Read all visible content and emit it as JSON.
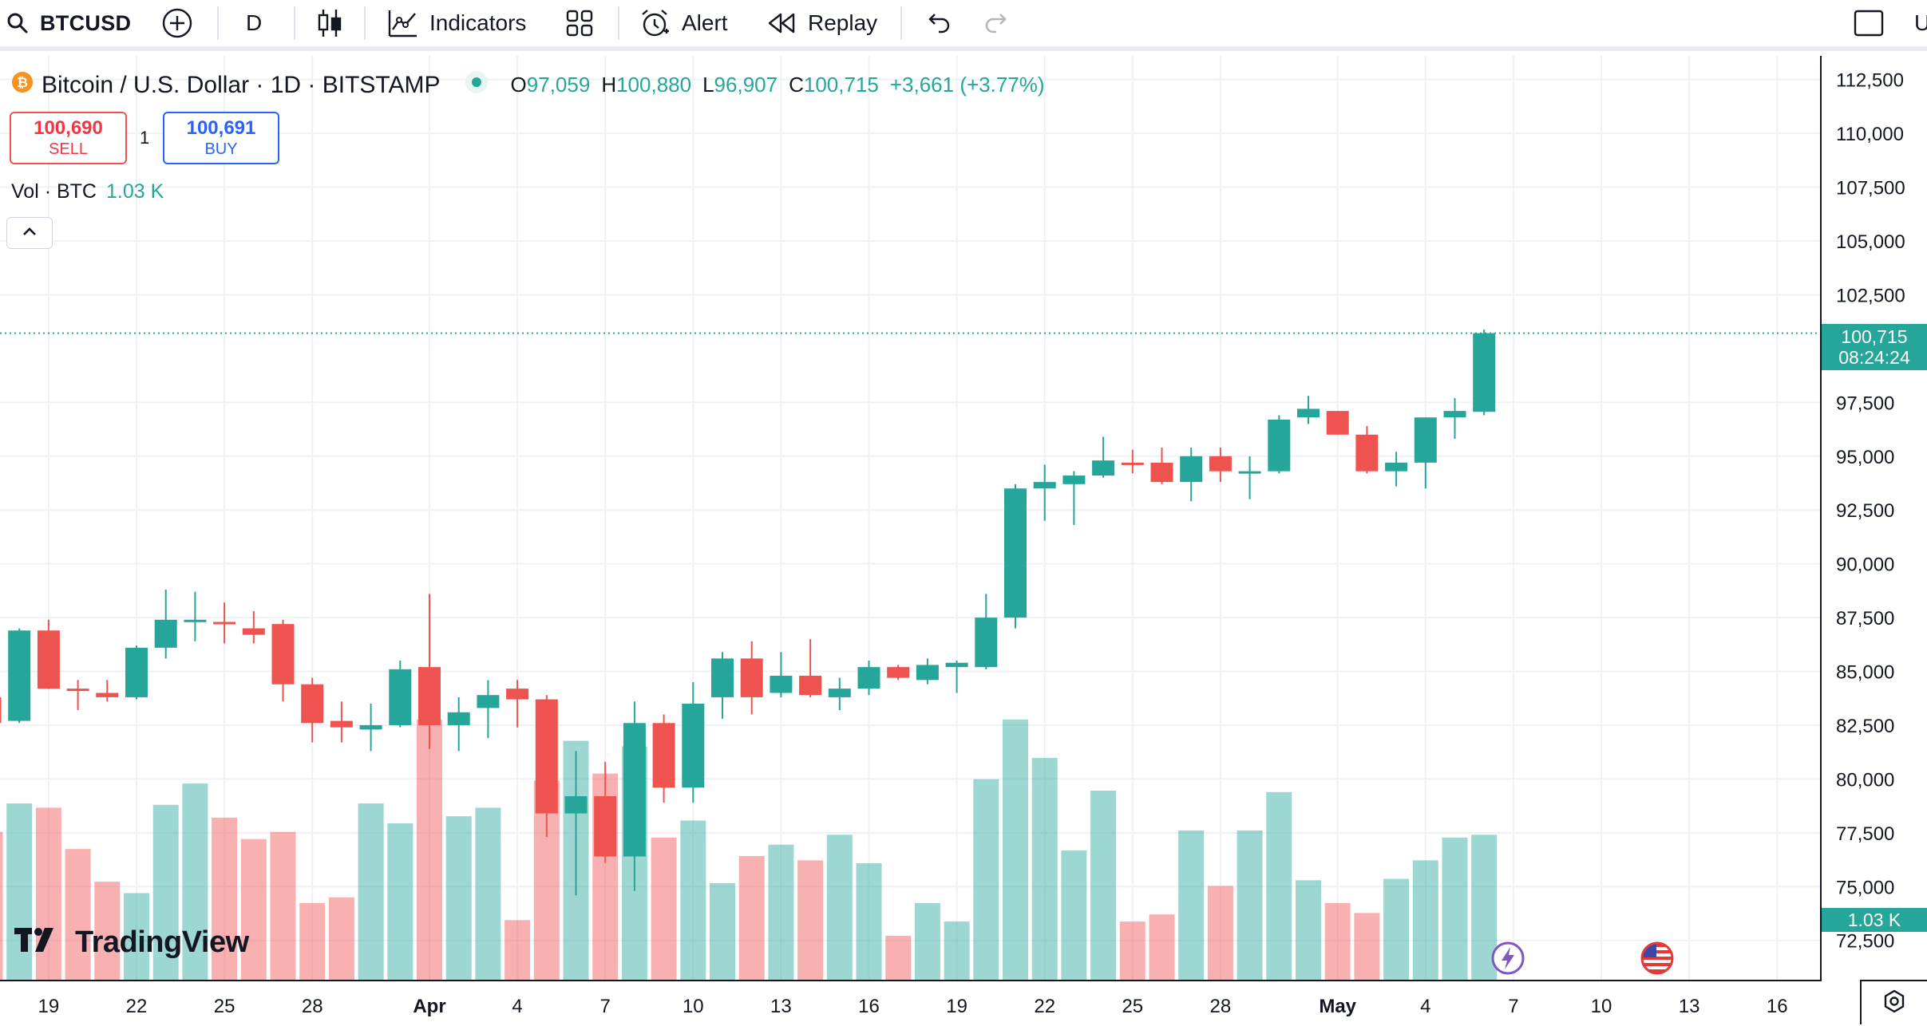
{
  "toolbar": {
    "symbol": "BTCUSD",
    "interval": "D",
    "indicators_label": "Indicators",
    "alert_label": "Alert",
    "replay_label": "Replay",
    "right_cut_label": "U"
  },
  "legend": {
    "title": "Bitcoin / U.S. Dollar · 1D · BITSTAMP",
    "open_label": "O",
    "open": "97,059",
    "high_label": "H",
    "high": "100,880",
    "low_label": "L",
    "low": "96,907",
    "close_label": "C",
    "close": "100,715",
    "change": "+3,661 (+3.77%)"
  },
  "trade": {
    "sell_price": "100,690",
    "sell_label": "SELL",
    "spread": "1",
    "buy_price": "100,691",
    "buy_label": "BUY"
  },
  "volume_legend": {
    "label": "Vol · BTC",
    "value": "1.03 K"
  },
  "price_scale": {
    "labels": [
      "112,500",
      "110,000",
      "107,500",
      "105,000",
      "102,500",
      "97,500",
      "95,000",
      "92,500",
      "90,000",
      "87,500",
      "85,000",
      "82,500",
      "80,000",
      "77,500",
      "75,000",
      "72,500"
    ],
    "last_price": "100,715",
    "countdown": "08:24:24",
    "volume_badge": "1.03 K"
  },
  "time_scale": {
    "labels": [
      "19",
      "22",
      "25",
      "28",
      "Apr",
      "4",
      "7",
      "10",
      "13",
      "16",
      "19",
      "22",
      "25",
      "28",
      "May",
      "4",
      "7",
      "10",
      "13",
      "16"
    ]
  },
  "brand": {
    "name": "TradingView"
  },
  "colors": {
    "up": "#26a69a",
    "down": "#ef5350",
    "grid": "#eef1f5",
    "price_line": "#26a69a"
  },
  "chart_data": {
    "type": "candlestick",
    "title": "Bitcoin / U.S. Dollar · 1D · BITSTAMP",
    "ylim": [
      70600,
      113600
    ],
    "y_ticks": [
      72500,
      75000,
      77500,
      80000,
      82500,
      85000,
      87500,
      90000,
      92500,
      95000,
      97500,
      102500,
      105000,
      107500,
      110000,
      112500
    ],
    "volume_max": 1.85,
    "candles": [
      {
        "date": "Mar 17",
        "open": 83800,
        "high": 84100,
        "low": 82600,
        "close": 82600,
        "volume": 1.05
      },
      {
        "date": "Mar 18",
        "open": 82700,
        "high": 87000,
        "low": 82600,
        "close": 86900,
        "volume": 1.25
      },
      {
        "date": "Mar 19",
        "open": 86900,
        "high": 87400,
        "low": 84200,
        "close": 84200,
        "volume": 1.22
      },
      {
        "date": "Mar 20",
        "open": 84200,
        "high": 84600,
        "low": 83200,
        "close": 84100,
        "volume": 0.93
      },
      {
        "date": "Mar 21",
        "open": 84000,
        "high": 84600,
        "low": 83600,
        "close": 83800,
        "volume": 0.7
      },
      {
        "date": "Mar 22",
        "open": 83800,
        "high": 86200,
        "low": 83700,
        "close": 86100,
        "volume": 0.62
      },
      {
        "date": "Mar 23",
        "open": 86100,
        "high": 88800,
        "low": 85600,
        "close": 87400,
        "volume": 1.24
      },
      {
        "date": "Mar 24",
        "open": 87400,
        "high": 88700,
        "low": 86400,
        "close": 87400,
        "volume": 1.39
      },
      {
        "date": "Mar 25",
        "open": 87300,
        "high": 88200,
        "low": 86300,
        "close": 87200,
        "volume": 1.15
      },
      {
        "date": "Mar 26",
        "open": 87000,
        "high": 87800,
        "low": 86300,
        "close": 86700,
        "volume": 1.0
      },
      {
        "date": "Mar 27",
        "open": 87200,
        "high": 87400,
        "low": 83600,
        "close": 84400,
        "volume": 1.05
      },
      {
        "date": "Mar 28",
        "open": 84400,
        "high": 84700,
        "low": 81700,
        "close": 82600,
        "volume": 0.55
      },
      {
        "date": "Mar 29",
        "open": 82700,
        "high": 83600,
        "low": 81700,
        "close": 82400,
        "volume": 0.59
      },
      {
        "date": "Mar 30",
        "open": 82300,
        "high": 83500,
        "low": 81300,
        "close": 82500,
        "volume": 1.25
      },
      {
        "date": "Mar 31",
        "open": 82500,
        "high": 85500,
        "low": 82400,
        "close": 85100,
        "volume": 1.11
      },
      {
        "date": "Apr 1",
        "open": 85200,
        "high": 88600,
        "low": 81400,
        "close": 82500,
        "volume": 1.84
      },
      {
        "date": "Apr 2",
        "open": 82500,
        "high": 83800,
        "low": 81300,
        "close": 83100,
        "volume": 1.16
      },
      {
        "date": "Apr 3",
        "open": 83300,
        "high": 84600,
        "low": 81900,
        "close": 83900,
        "volume": 1.22
      },
      {
        "date": "Apr 4",
        "open": 84200,
        "high": 84600,
        "low": 82400,
        "close": 83700,
        "volume": 0.43
      },
      {
        "date": "Apr 5",
        "open": 83700,
        "high": 83900,
        "low": 77300,
        "close": 78400,
        "volume": 1.41
      },
      {
        "date": "Apr 6",
        "open": 78400,
        "high": 81300,
        "low": 74600,
        "close": 79200,
        "volume": 1.69
      },
      {
        "date": "Apr 7",
        "open": 79200,
        "high": 80800,
        "low": 76100,
        "close": 76400,
        "volume": 1.46
      },
      {
        "date": "Apr 8",
        "open": 76400,
        "high": 83600,
        "low": 74800,
        "close": 82600,
        "volume": 1.65
      },
      {
        "date": "Apr 9",
        "open": 82600,
        "high": 83000,
        "low": 78900,
        "close": 79600,
        "volume": 1.01
      },
      {
        "date": "Apr 10",
        "open": 79600,
        "high": 84500,
        "low": 78900,
        "close": 83500,
        "volume": 1.13
      },
      {
        "date": "Apr 11",
        "open": 83800,
        "high": 85900,
        "low": 82800,
        "close": 85600,
        "volume": 0.69
      },
      {
        "date": "Apr 12",
        "open": 85600,
        "high": 86400,
        "low": 83000,
        "close": 83800,
        "volume": 0.88
      },
      {
        "date": "Apr 13",
        "open": 84000,
        "high": 85900,
        "low": 83800,
        "close": 84800,
        "volume": 0.96
      },
      {
        "date": "Apr 14",
        "open": 84800,
        "high": 86500,
        "low": 83800,
        "close": 83900,
        "volume": 0.85
      },
      {
        "date": "Apr 15",
        "open": 83800,
        "high": 84700,
        "low": 83200,
        "close": 84200,
        "volume": 1.03
      },
      {
        "date": "Apr 16",
        "open": 84200,
        "high": 85500,
        "low": 83900,
        "close": 85200,
        "volume": 0.83
      },
      {
        "date": "Apr 17",
        "open": 85200,
        "high": 85300,
        "low": 84600,
        "close": 84700,
        "volume": 0.32
      },
      {
        "date": "Apr 18",
        "open": 84600,
        "high": 85600,
        "low": 84400,
        "close": 85300,
        "volume": 0.55
      },
      {
        "date": "Apr 19",
        "open": 85200,
        "high": 85500,
        "low": 84000,
        "close": 85400,
        "volume": 0.42
      },
      {
        "date": "Apr 20",
        "open": 85200,
        "high": 88600,
        "low": 85100,
        "close": 87500,
        "volume": 1.42
      },
      {
        "date": "Apr 21",
        "open": 87500,
        "high": 93700,
        "low": 87000,
        "close": 93500,
        "volume": 1.84
      },
      {
        "date": "Apr 22",
        "open": 93500,
        "high": 94600,
        "low": 92000,
        "close": 93800,
        "volume": 1.57
      },
      {
        "date": "Apr 23",
        "open": 93700,
        "high": 94300,
        "low": 91800,
        "close": 94100,
        "volume": 0.92
      },
      {
        "date": "Apr 24",
        "open": 94100,
        "high": 95900,
        "low": 94000,
        "close": 94800,
        "volume": 1.34
      },
      {
        "date": "Apr 25",
        "open": 94700,
        "high": 95300,
        "low": 94200,
        "close": 94600,
        "volume": 0.42
      },
      {
        "date": "Apr 26",
        "open": 94700,
        "high": 95400,
        "low": 93700,
        "close": 93800,
        "volume": 0.47
      },
      {
        "date": "Apr 27",
        "open": 93800,
        "high": 95400,
        "low": 92900,
        "close": 95000,
        "volume": 1.06
      },
      {
        "date": "Apr 28",
        "open": 95000,
        "high": 95400,
        "low": 93800,
        "close": 94300,
        "volume": 0.67
      },
      {
        "date": "Apr 29",
        "open": 94300,
        "high": 95000,
        "low": 93000,
        "close": 94300,
        "volume": 1.06
      },
      {
        "date": "Apr 30",
        "open": 94300,
        "high": 96900,
        "low": 94200,
        "close": 96700,
        "volume": 1.33
      },
      {
        "date": "May 1",
        "open": 96800,
        "high": 97800,
        "low": 96500,
        "close": 97200,
        "volume": 0.71
      },
      {
        "date": "May 2",
        "open": 97100,
        "high": 97100,
        "low": 96000,
        "close": 96000,
        "volume": 0.55
      },
      {
        "date": "May 3",
        "open": 96000,
        "high": 96400,
        "low": 94200,
        "close": 94300,
        "volume": 0.48
      },
      {
        "date": "May 4",
        "open": 94300,
        "high": 95200,
        "low": 93600,
        "close": 94700,
        "volume": 0.72
      },
      {
        "date": "May 5",
        "open": 94700,
        "high": 96800,
        "low": 93500,
        "close": 96800,
        "volume": 0.85
      },
      {
        "date": "May 6",
        "open": 96800,
        "high": 97700,
        "low": 95800,
        "close": 97100,
        "volume": 1.01
      },
      {
        "date": "May 7",
        "open": 97059,
        "high": 100880,
        "low": 96907,
        "close": 100715,
        "volume": 1.03
      }
    ]
  }
}
